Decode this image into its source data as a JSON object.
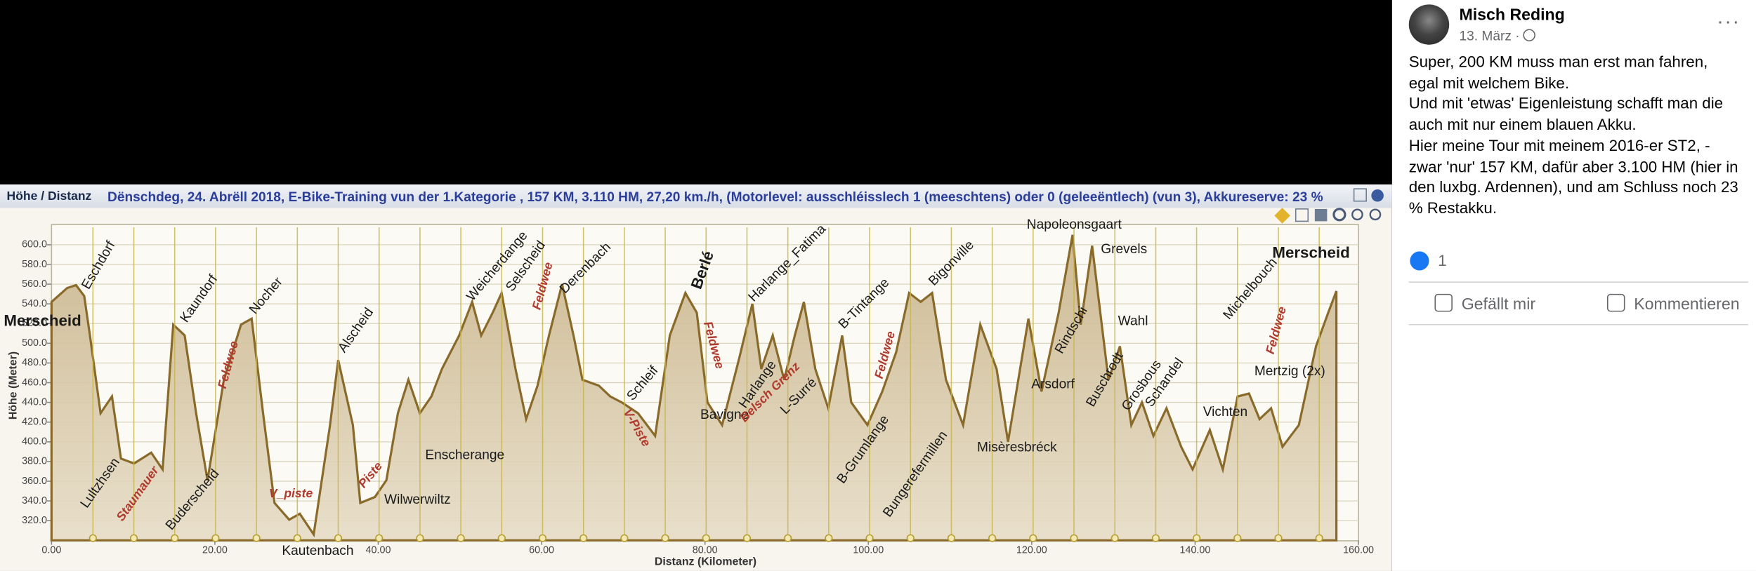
{
  "chart_data": {
    "type": "area",
    "panel_title": "Höhe / Distanz",
    "title": "Dënschdeg, 24. Abrëll 2018,  E-Bike-Training vun der 1.Kategorie ,  157 KM,  3.110 HM,  27,20 km./h,  (Motorlevel: ausschléisslech 1 (meeschtens)  oder 0 (geleeëntlech) (vun 3), Akkureserve: 23 %",
    "x_label": "Distanz (Kilometer)",
    "y_label": "Höhe (Meter)",
    "color": "#8a6a2a",
    "fill": "#cdb893",
    "grid": true,
    "xlim": [
      0,
      160
    ],
    "ylim": [
      300,
      620
    ],
    "xticks": [
      {
        "value": 0,
        "label": "0.00"
      },
      {
        "value": 20,
        "label": "20.00"
      },
      {
        "value": 40,
        "label": "40.00"
      },
      {
        "value": 60,
        "label": "60.00"
      },
      {
        "value": 80,
        "label": "80.00"
      },
      {
        "value": 100,
        "label": "100.00"
      },
      {
        "value": 120,
        "label": "120.00"
      },
      {
        "value": 140,
        "label": "140.00"
      },
      {
        "value": 160,
        "label": "160.00"
      }
    ],
    "yticks": [
      {
        "value": 320,
        "label": "320.0"
      },
      {
        "value": 340,
        "label": "340.0"
      },
      {
        "value": 360,
        "label": "360.0"
      },
      {
        "value": 380,
        "label": "380.0"
      },
      {
        "value": 400,
        "label": "400.0"
      },
      {
        "value": 420,
        "label": "420.0"
      },
      {
        "value": 440,
        "label": "440.0"
      },
      {
        "value": 460,
        "label": "460.0"
      },
      {
        "value": 480,
        "label": "480.0"
      },
      {
        "value": 500,
        "label": "500.0"
      },
      {
        "value": 520,
        "label": "520.0"
      },
      {
        "value": 540,
        "label": "540.0"
      },
      {
        "value": 560,
        "label": "560.0"
      },
      {
        "value": 580,
        "label": "580.0"
      },
      {
        "value": 600,
        "label": "600.0"
      }
    ],
    "x": [
      0,
      1.9,
      3.0,
      4.0,
      4.7,
      6.0,
      7.4,
      8.5,
      10.1,
      12.2,
      13.6,
      14.9,
      16.3,
      17.7,
      19.1,
      21.1,
      23.2,
      24.5,
      25.9,
      27.3,
      29.1,
      30.4,
      32.1,
      34.1,
      35.1,
      36.9,
      37.8,
      39.6,
      41.0,
      42.4,
      43.7,
      45.1,
      46.5,
      47.8,
      49.9,
      51.5,
      52.6,
      54.0,
      55.1,
      56.8,
      58.1,
      59.5,
      60.9,
      62.5,
      63.9,
      65.0,
      67.0,
      68.4,
      69.8,
      71.8,
      73.9,
      75.7,
      77.6,
      79.0,
      80.3,
      82.1,
      84.2,
      85.8,
      86.9,
      88.3,
      89.7,
      91.0,
      92.1,
      93.5,
      95.1,
      96.8,
      97.9,
      99.9,
      101.7,
      103.4,
      105.0,
      106.4,
      107.8,
      109.5,
      111.6,
      113.7,
      115.7,
      117.1,
      119.6,
      121.2,
      123.3,
      125.0,
      126.0,
      127.4,
      129.4,
      130.8,
      132.2,
      133.5,
      134.9,
      136.5,
      138.3,
      139.7,
      141.8,
      143.4,
      145.2,
      146.6,
      147.9,
      149.3,
      150.7,
      152.7,
      154.8,
      156.3,
      157.3
    ],
    "values": [
      542,
      556,
      559,
      548,
      508,
      429,
      446,
      383,
      378,
      389,
      372,
      519,
      508,
      429,
      361,
      463,
      519,
      525,
      429,
      338,
      321,
      327,
      306,
      417,
      483,
      417,
      338,
      344,
      361,
      429,
      463,
      429,
      446,
      474,
      508,
      542,
      508,
      531,
      551,
      474,
      423,
      457,
      508,
      560,
      508,
      463,
      457,
      446,
      440,
      429,
      406,
      508,
      551,
      531,
      440,
      417,
      485,
      540,
      474,
      508,
      463,
      508,
      542,
      474,
      434,
      508,
      440,
      417,
      451,
      491,
      551,
      542,
      551,
      463,
      417,
      519,
      474,
      400,
      525,
      451,
      531,
      610,
      519,
      599,
      463,
      497,
      417,
      440,
      406,
      434,
      395,
      372,
      412,
      372,
      446,
      449,
      423,
      434,
      395,
      417,
      497,
      531,
      553
    ],
    "annotations": [
      {
        "text": "Eschdorf",
        "x": 5.8,
        "y": 579,
        "color": "#1a1a1a"
      },
      {
        "text": "Merscheid",
        "x": -1.1,
        "y": 522,
        "color": "#1a1a1a",
        "bold": true
      },
      {
        "text": "Lultzhsen",
        "x": 6.0,
        "y": 358,
        "color": "#1a1a1a"
      },
      {
        "text": "Staumauer",
        "x": 10.6,
        "y": 347,
        "color": "#b03a2e"
      },
      {
        "text": "Kaundorf",
        "x": 18.1,
        "y": 545,
        "color": "#1a1a1a"
      },
      {
        "text": "Buderscheid",
        "x": 17.3,
        "y": 341,
        "color": "#1a1a1a"
      },
      {
        "text": "Feldwee",
        "x": 21.7,
        "y": 478,
        "color": "#b03a2e"
      },
      {
        "text": "Nocher",
        "x": 26.3,
        "y": 548,
        "color": "#1a1a1a"
      },
      {
        "text": "V_piste",
        "x": 29.3,
        "y": 347,
        "color": "#b03a2e"
      },
      {
        "text": "Kautenbach",
        "x": 32.6,
        "y": 289,
        "color": "#1a1a1a"
      },
      {
        "text": "Alscheid",
        "x": 37.3,
        "y": 513,
        "color": "#1a1a1a"
      },
      {
        "text": "Piste",
        "x": 39.1,
        "y": 366,
        "color": "#b03a2e"
      },
      {
        "text": "Wilwerwiltz",
        "x": 44.8,
        "y": 341,
        "color": "#1a1a1a"
      },
      {
        "text": "Enscherange",
        "x": 50.6,
        "y": 386,
        "color": "#1a1a1a"
      },
      {
        "text": "Weicherdange",
        "x": 54.6,
        "y": 578,
        "color": "#1a1a1a"
      },
      {
        "text": "Selscheid",
        "x": 58.1,
        "y": 578,
        "color": "#1a1a1a"
      },
      {
        "text": "Feldwee",
        "x": 60.2,
        "y": 558,
        "color": "#b03a2e"
      },
      {
        "text": "Derenbach",
        "x": 65.4,
        "y": 576,
        "color": "#1a1a1a"
      },
      {
        "text": "Schleif",
        "x": 72.4,
        "y": 459,
        "color": "#1a1a1a"
      },
      {
        "text": "V-Piste",
        "x": 71.6,
        "y": 414,
        "color": "#b03a2e"
      },
      {
        "text": "Berlé",
        "x": 79.8,
        "y": 574,
        "color": "#1a1a1a",
        "bold": true
      },
      {
        "text": "Feldwee",
        "x": 81.0,
        "y": 498,
        "color": "#b03a2e"
      },
      {
        "text": "Bavigne",
        "x": 82.4,
        "y": 427,
        "color": "#1a1a1a"
      },
      {
        "text": "Harlange_Fatima",
        "x": 90.1,
        "y": 581,
        "color": "#1a1a1a"
      },
      {
        "text": "Harlange",
        "x": 86.5,
        "y": 458,
        "color": "#1a1a1a"
      },
      {
        "text": "Belsch Grenz",
        "x": 88.0,
        "y": 450,
        "color": "#b03a2e"
      },
      {
        "text": "L-Surré",
        "x": 91.5,
        "y": 446,
        "color": "#1a1a1a"
      },
      {
        "text": "B-Tintange",
        "x": 99.5,
        "y": 540,
        "color": "#1a1a1a"
      },
      {
        "text": "Feldwee",
        "x": 102.1,
        "y": 488,
        "color": "#b03a2e"
      },
      {
        "text": "B-Grumlange",
        "x": 99.4,
        "y": 392,
        "color": "#1a1a1a"
      },
      {
        "text": "Bigonville",
        "x": 110.2,
        "y": 581,
        "color": "#1a1a1a"
      },
      {
        "text": "Bungerefermillen",
        "x": 105.8,
        "y": 367,
        "color": "#1a1a1a"
      },
      {
        "text": "Misèresbréck",
        "x": 118.2,
        "y": 394,
        "color": "#1a1a1a"
      },
      {
        "text": "Napoleonsgaart",
        "x": 125.2,
        "y": 620,
        "color": "#1a1a1a"
      },
      {
        "text": "Grevels",
        "x": 131.3,
        "y": 595,
        "color": "#1a1a1a"
      },
      {
        "text": "Rindschi",
        "x": 124.9,
        "y": 513,
        "color": "#1a1a1a"
      },
      {
        "text": "Arsdorf",
        "x": 122.6,
        "y": 458,
        "color": "#1a1a1a"
      },
      {
        "text": "Wahl",
        "x": 132.4,
        "y": 522,
        "color": "#1a1a1a"
      },
      {
        "text": "Buschrodt",
        "x": 129.0,
        "y": 463,
        "color": "#1a1a1a"
      },
      {
        "text": "Grosbous",
        "x": 133.5,
        "y": 457,
        "color": "#1a1a1a"
      },
      {
        "text": "Schandel",
        "x": 136.3,
        "y": 460,
        "color": "#1a1a1a"
      },
      {
        "text": "Vichten",
        "x": 143.7,
        "y": 430,
        "color": "#1a1a1a"
      },
      {
        "text": "Michelbouch",
        "x": 146.8,
        "y": 555,
        "color": "#1a1a1a"
      },
      {
        "text": "Feldwee",
        "x": 150.0,
        "y": 513,
        "color": "#b03a2e"
      },
      {
        "text": "Mertzig (2x)",
        "x": 151.6,
        "y": 471,
        "color": "#1a1a1a"
      },
      {
        "text": "Merscheid",
        "x": 154.2,
        "y": 591,
        "color": "#1a1a1a",
        "bold": true
      }
    ]
  },
  "post": {
    "author": "Misch Reding",
    "date": "13. März ·",
    "paragraphs": [
      "Super, 200 KM muss man erst man fahren, egal mit welchem Bike.",
      "Und mit 'etwas' Eigenleistung schafft man die auch mit nur einem blauen Akku.",
      "Hier meine Tour mit meinem 2016-er ST2, - zwar 'nur' 157 KM, dafür aber 3.100 HM (hier in den luxbg. Ardennen), und am Schluss noch 23 % Restakku."
    ],
    "likes": "1",
    "like_button": "Gefällt mir",
    "comment_button": "Kommentieren"
  }
}
